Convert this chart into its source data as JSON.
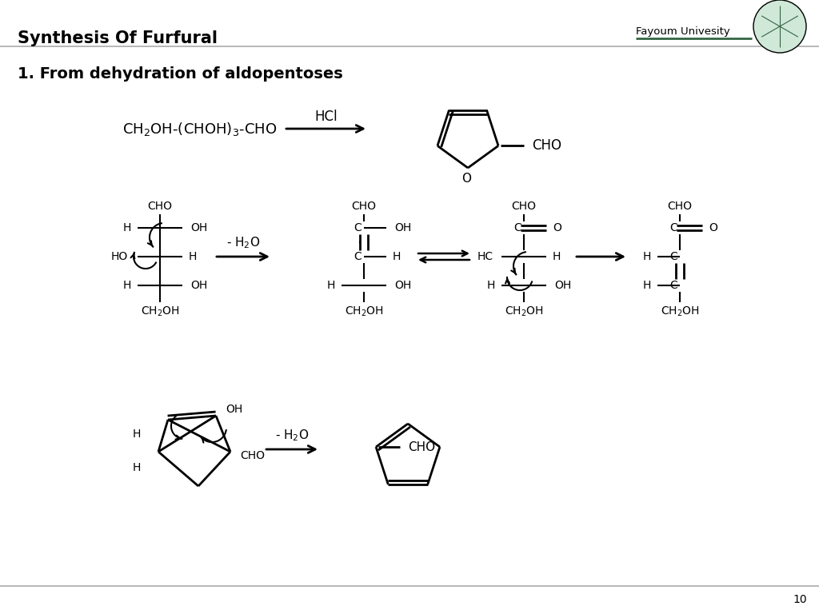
{
  "title": "Synthesis Of Furfural",
  "subtitle": "1. From dehydration of aldopentoses",
  "university": "Fayoum Univesity",
  "page_number": "10",
  "bg_color": "#ffffff",
  "text_color": "#000000",
  "font_size_title": 15,
  "font_size_subtitle": 14,
  "font_size_body": 10
}
